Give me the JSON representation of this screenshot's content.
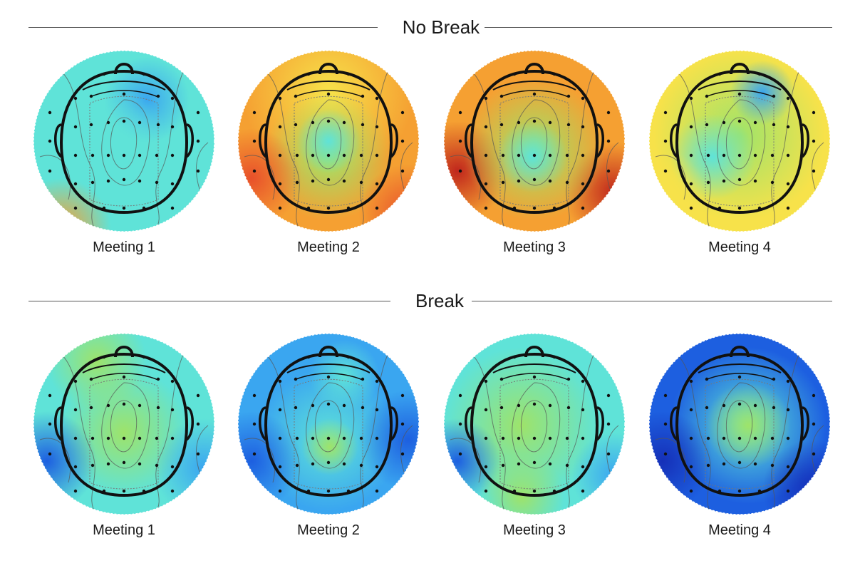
{
  "sections": [
    {
      "title": "No Break",
      "maps": [
        {
          "label": "Meeting 1",
          "palette": "m1",
          "focus": "blue-right-front"
        },
        {
          "label": "Meeting 2",
          "palette": "m2",
          "focus": "green-center"
        },
        {
          "label": "Meeting 3",
          "palette": "m3",
          "focus": "green-center"
        },
        {
          "label": "Meeting 4",
          "palette": "m4",
          "focus": "blue-right-front"
        }
      ]
    },
    {
      "title": "Break",
      "maps": [
        {
          "label": "Meeting 1",
          "palette": "b1",
          "focus": "green-center"
        },
        {
          "label": "Meeting 2",
          "palette": "b2",
          "focus": "green-center"
        },
        {
          "label": "Meeting 3",
          "palette": "b3",
          "focus": "green-center"
        },
        {
          "label": "Meeting 4",
          "palette": "b4",
          "focus": "green-center"
        }
      ]
    }
  ],
  "colors": {
    "dark_red": "#c0261c",
    "red": "#e8502a",
    "orange": "#f5a032",
    "yellow": "#f7e24a",
    "green": "#9ee36a",
    "cyan": "#5fe3d8",
    "light_blue": "#3aa6f0",
    "blue": "#1d5fe0",
    "dark_blue": "#1530b8"
  }
}
